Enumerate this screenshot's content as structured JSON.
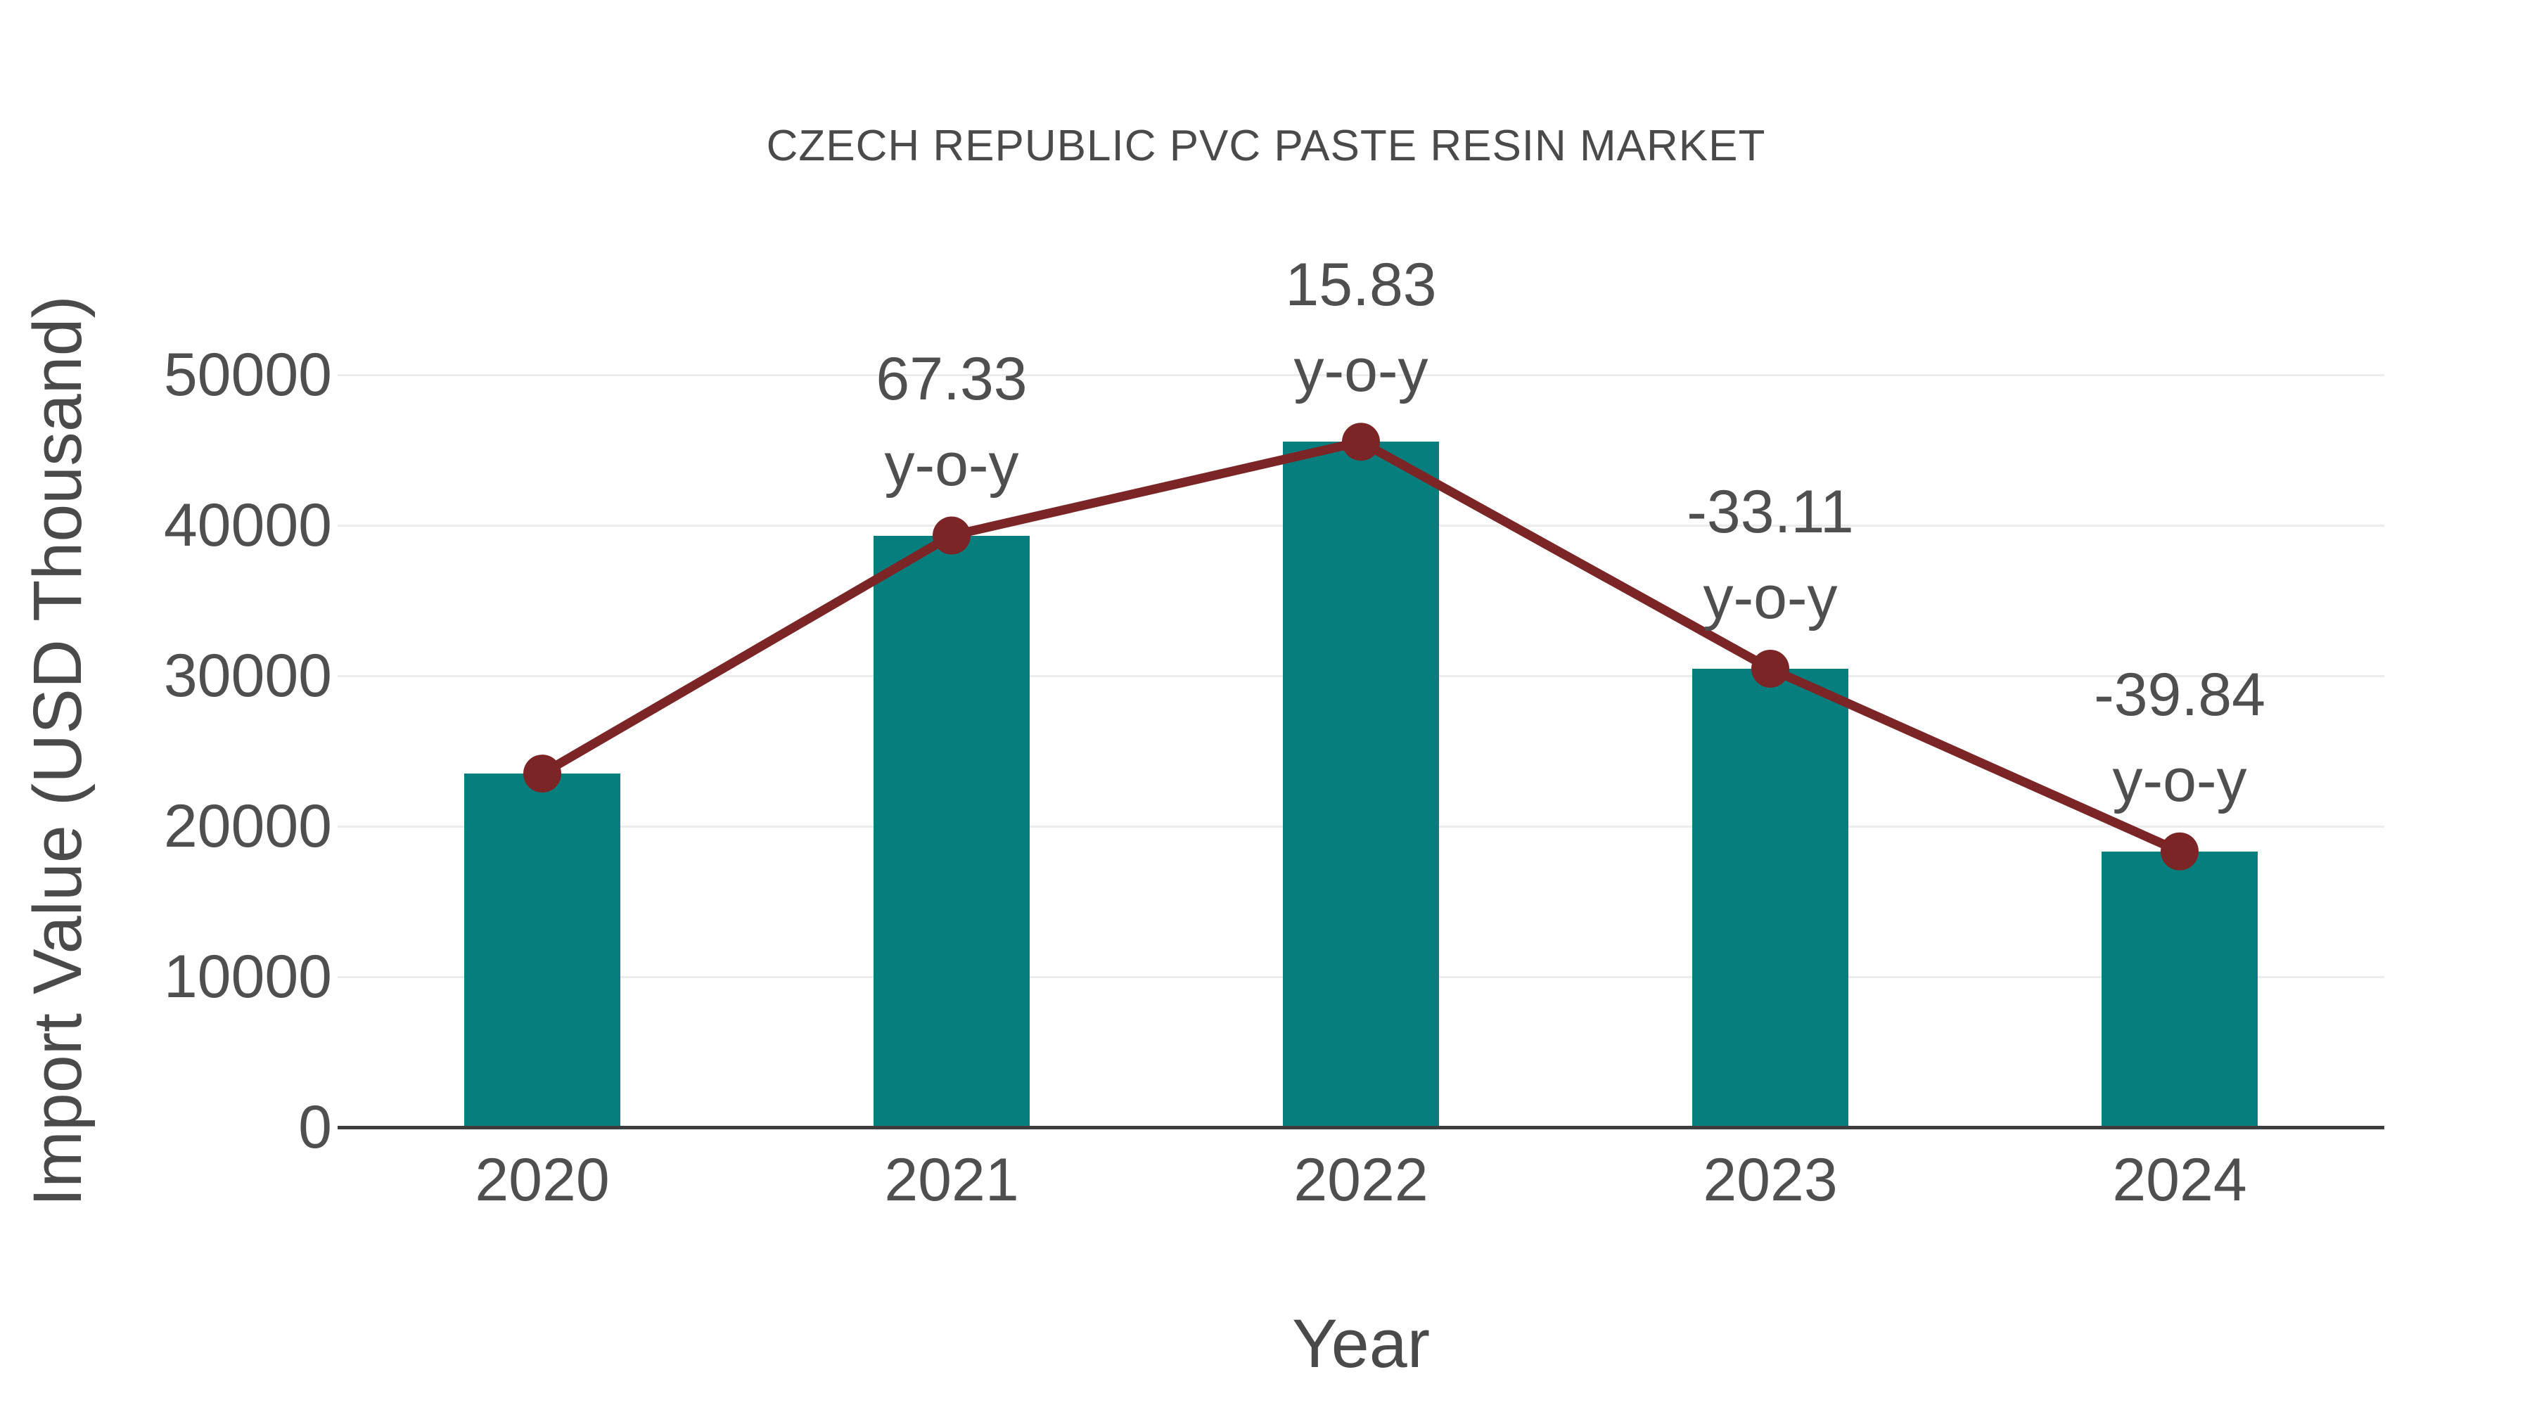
{
  "title": "CZECH REPUBLIC PVC PASTE RESIN MARKET",
  "colors": {
    "bar": "#067e7e",
    "line": "#7b2526",
    "marker": "#7b2526",
    "grid": "#ececec",
    "axis": "#3d3d3d",
    "text": "#4a4a4a",
    "tick_text": "#4f4f4f",
    "background": "#ffffff"
  },
  "chart_data": {
    "type": "bar",
    "title": "CZECH REPUBLIC PVC PASTE RESIN MARKET",
    "xlabel": "Year",
    "ylabel": "Import Value (USD Thousand)",
    "categories": [
      "2020",
      "2021",
      "2022",
      "2023",
      "2024"
    ],
    "series": [
      {
        "name": "Import Value (USD Thousand)",
        "type": "bar",
        "values": [
          23500,
          39320,
          45550,
          30470,
          18330
        ]
      },
      {
        "name": "Import Value trend",
        "type": "line",
        "values": [
          23500,
          39320,
          45550,
          30470,
          18330
        ]
      }
    ],
    "yoy_percent": [
      null,
      67.33,
      15.83,
      -33.11,
      -39.84
    ],
    "annotations": [
      {
        "category": "2021",
        "lines": [
          "67.33",
          "y-o-y"
        ]
      },
      {
        "category": "2022",
        "lines": [
          "15.83",
          "y-o-y"
        ]
      },
      {
        "category": "2023",
        "lines": [
          "-33.11",
          "y-o-y"
        ]
      },
      {
        "category": "2024",
        "lines": [
          "-39.84",
          "y-o-y"
        ]
      }
    ],
    "yticks": [
      0,
      10000,
      20000,
      30000,
      40000,
      50000
    ],
    "ylim": [
      0,
      50000
    ],
    "grid": "horizontal",
    "legend_position": "none"
  }
}
